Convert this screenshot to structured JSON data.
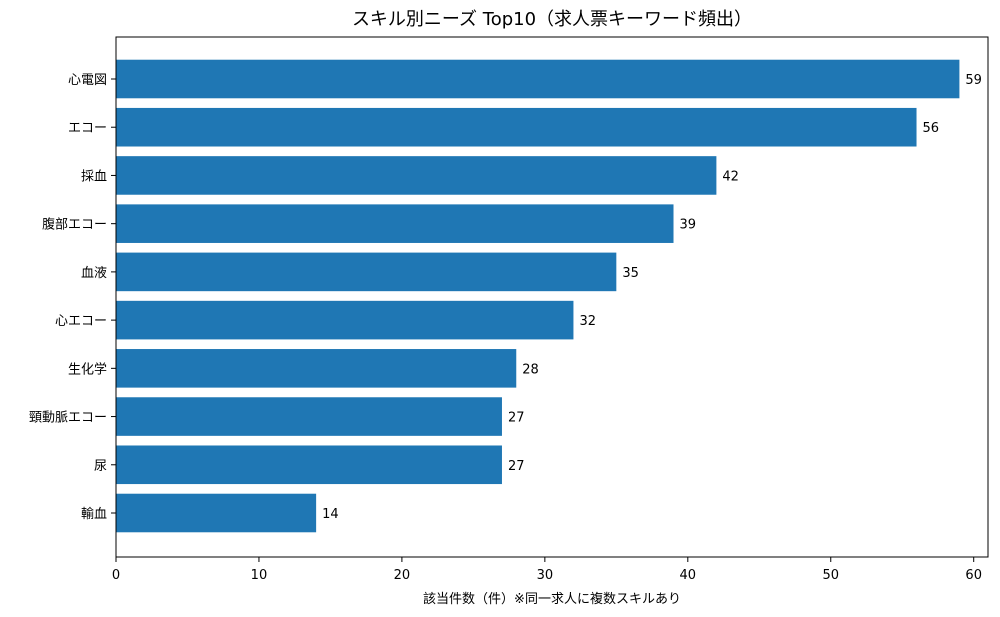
{
  "chart_data": {
    "type": "bar",
    "orientation": "horizontal",
    "title": "スキル別ニーズ Top10（求人票キーワード頻出）",
    "xlabel": "該当件数（件）※同一求人に複数スキルあり",
    "ylabel": "",
    "categories": [
      "心電図",
      "エコー",
      "採血",
      "腹部エコー",
      "血液",
      "心エコー",
      "生化学",
      "頸動脈エコー",
      "尿",
      "輸血"
    ],
    "values": [
      59,
      56,
      42,
      39,
      35,
      32,
      28,
      27,
      27,
      14
    ],
    "xlim": [
      0,
      61
    ],
    "xticks": [
      0,
      10,
      20,
      30,
      40,
      50,
      60
    ],
    "grid": false,
    "bar_color": "#1f77b4",
    "value_labels": true
  }
}
